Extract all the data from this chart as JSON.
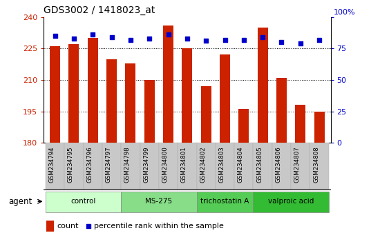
{
  "title": "GDS3002 / 1418023_at",
  "samples": [
    "GSM234794",
    "GSM234795",
    "GSM234796",
    "GSM234797",
    "GSM234798",
    "GSM234799",
    "GSM234800",
    "GSM234801",
    "GSM234802",
    "GSM234803",
    "GSM234804",
    "GSM234805",
    "GSM234806",
    "GSM234807",
    "GSM234808"
  ],
  "count_values": [
    226,
    227,
    230,
    220,
    218,
    210,
    236,
    225,
    207,
    222,
    196,
    235,
    211,
    198,
    195
  ],
  "percentile_values": [
    85,
    83,
    86,
    84,
    82,
    83,
    86,
    83,
    81,
    82,
    82,
    84,
    80,
    79,
    82
  ],
  "ylim_left": [
    180,
    240
  ],
  "ylim_right": [
    0,
    100
  ],
  "yticks_left": [
    180,
    195,
    210,
    225,
    240
  ],
  "yticks_right": [
    0,
    25,
    50,
    75,
    100
  ],
  "bar_color": "#CC2200",
  "dot_color": "#0000CC",
  "bar_width": 0.55,
  "agent_groups": [
    {
      "label": "control",
      "start": 0,
      "end": 3,
      "color": "#CCFFCC"
    },
    {
      "label": "MS-275",
      "start": 4,
      "end": 7,
      "color": "#88DD88"
    },
    {
      "label": "trichostatin A",
      "start": 8,
      "end": 10,
      "color": "#55CC55"
    },
    {
      "label": "valproic acid",
      "start": 11,
      "end": 14,
      "color": "#33BB33"
    }
  ],
  "title_color": "#000000",
  "left_tick_color": "#CC2200",
  "right_tick_color": "#0000CC",
  "plot_bg_color": "#FFFFFF",
  "grid_dotted_color": "#000000",
  "xlabel_label": "agent",
  "legend_count_label": "count",
  "legend_pct_label": "percentile rank within the sample"
}
